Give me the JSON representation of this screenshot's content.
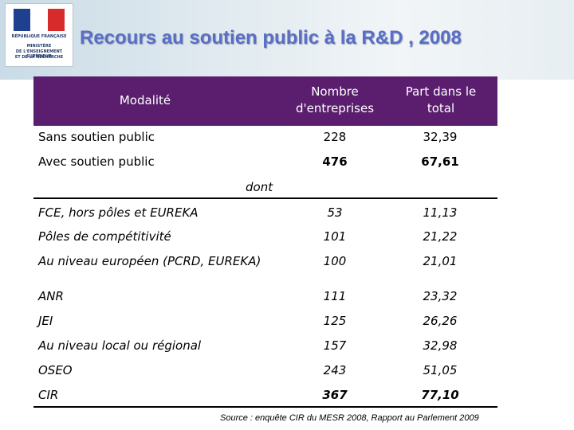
{
  "logo": {
    "line1": "RÉPUBLIQUE FRANÇAISE",
    "line2": "MINISTÈRE",
    "line3": "DE L'ENSEIGNEMENT SUPÉRIEUR",
    "line4": "ET DE LA RECHERCHE"
  },
  "title": "Recours au soutien public à la R&D , 2008",
  "table": {
    "headers": {
      "modalite": "Modalité",
      "nombre_line1": "Nombre",
      "nombre_line2": "d'entreprises",
      "part_line1": "Part dans le",
      "part_line2": "total"
    },
    "rows": [
      {
        "label": "Sans soutien public",
        "nombre": "228",
        "part": "32,39"
      },
      {
        "label": "Avec soutien public",
        "nombre": "476",
        "part": "67,61"
      }
    ],
    "dont_label": "dont",
    "sub_rows": [
      {
        "label": "FCE, hors pôles et EUREKA",
        "nombre": "53",
        "part": "11,13"
      },
      {
        "label": "Pôles de compétitivité",
        "nombre": "101",
        "part": "21,22"
      },
      {
        "label": "Au niveau européen (PCRD, EUREKA)",
        "nombre": "100",
        "part": "21,01"
      },
      {
        "label": "ANR",
        "nombre": "111",
        "part": "23,32"
      },
      {
        "label": "JEI",
        "nombre": "125",
        "part": "26,26"
      },
      {
        "label": "Au niveau local ou régional",
        "nombre": "157",
        "part": "32,98"
      },
      {
        "label": "OSEO",
        "nombre": "243",
        "part": "51,05"
      },
      {
        "label": "CIR",
        "nombre": "367",
        "part": "77,10"
      }
    ]
  },
  "source": "Source : enquête CIR du MESR 2008, Rapport au Parlement 2009"
}
